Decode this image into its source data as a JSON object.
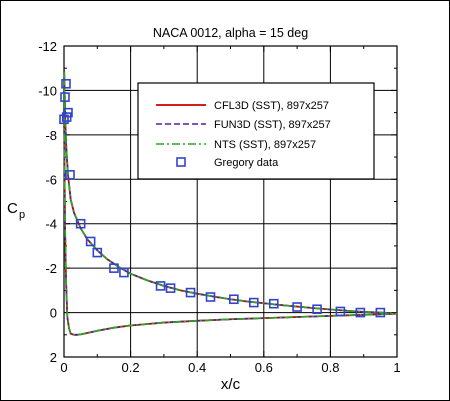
{
  "chart_data": {
    "type": "line",
    "title": "NACA 0012, alpha = 15 deg",
    "xlabel": "x/c",
    "ylabel": "C",
    "ylabel_subscript": "p",
    "xlim": [
      0,
      1
    ],
    "ylim": [
      -12,
      2
    ],
    "y_inverted": true,
    "grid": true,
    "legend_position": "top-right",
    "x_ticks": [
      0,
      0.2,
      0.4,
      0.6,
      0.8,
      1
    ],
    "x_tick_labels": [
      "0",
      "0.2",
      "0.4",
      "0.6",
      "0.8",
      "1"
    ],
    "y_ticks": [
      -12,
      -10,
      -8,
      -6,
      -4,
      -2,
      0,
      2
    ],
    "y_tick_labels": [
      "-12",
      "-10",
      "-8",
      "-6",
      "-4",
      "-2",
      "0",
      "2"
    ],
    "series": [
      {
        "name": "CFL3D (SST), 897x257",
        "color": "#cc0000",
        "style": "solid",
        "upper": {
          "x": [
            0,
            0.0005,
            0.001,
            0.002,
            0.004,
            0.007,
            0.012,
            0.02,
            0.03,
            0.05,
            0.07,
            0.1,
            0.13,
            0.17,
            0.2,
            0.25,
            0.3,
            0.35,
            0.4,
            0.45,
            0.5,
            0.55,
            0.6,
            0.65,
            0.7,
            0.75,
            0.8,
            0.85,
            0.9,
            0.95,
            1.0
          ],
          "y": [
            -9.5,
            -10.9,
            -10.6,
            -9.8,
            -8.6,
            -7.4,
            -6.2,
            -5.1,
            -4.5,
            -3.8,
            -3.3,
            -2.8,
            -2.4,
            -2.0,
            -1.75,
            -1.45,
            -1.2,
            -1.0,
            -0.85,
            -0.72,
            -0.6,
            -0.5,
            -0.42,
            -0.34,
            -0.27,
            -0.2,
            -0.14,
            -0.08,
            -0.03,
            0.0,
            0.05
          ]
        },
        "lower": {
          "x": [
            0,
            0.003,
            0.006,
            0.01,
            0.015,
            0.02,
            0.03,
            0.04,
            0.05,
            0.07,
            0.1,
            0.15,
            0.2,
            0.3,
            0.4,
            0.5,
            0.6,
            0.7,
            0.8,
            0.9,
            1.0
          ],
          "y": [
            -9.5,
            -4.0,
            -1.5,
            0.2,
            0.7,
            0.95,
            1.0,
            1.0,
            0.98,
            0.92,
            0.82,
            0.68,
            0.58,
            0.45,
            0.37,
            0.3,
            0.25,
            0.2,
            0.15,
            0.1,
            0.05
          ]
        }
      },
      {
        "name": "FUN3D (SST), 897x257",
        "color": "#5a1aa6",
        "style": "dashed"
      },
      {
        "name": "NTS (SST), 897x257",
        "color": "#22aa22",
        "style": "dashdot"
      },
      {
        "name": "Gregory data",
        "marker": "square",
        "color": "#3344cc",
        "points": {
          "x": [
            0.0,
            0.003,
            0.006,
            0.008,
            0.012,
            0.018,
            0.05,
            0.08,
            0.1,
            0.15,
            0.18,
            0.29,
            0.32,
            0.38,
            0.44,
            0.51,
            0.57,
            0.63,
            0.7,
            0.76,
            0.83,
            0.89,
            0.95
          ],
          "y": [
            -8.7,
            -9.7,
            -10.3,
            -8.8,
            -9.0,
            -6.2,
            -4.0,
            -3.2,
            -2.7,
            -2.0,
            -1.8,
            -1.2,
            -1.1,
            -0.9,
            -0.7,
            -0.6,
            -0.45,
            -0.4,
            -0.25,
            -0.15,
            -0.05,
            0.0,
            0.0
          ]
        }
      }
    ]
  }
}
